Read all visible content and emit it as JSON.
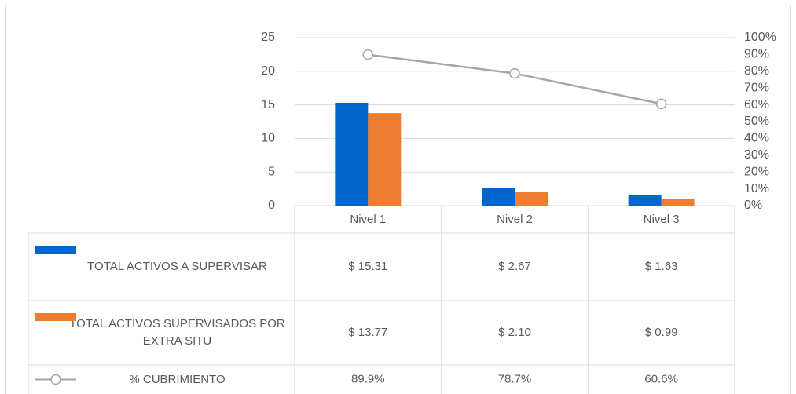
{
  "chart_data": {
    "type": "bar",
    "categories": [
      "Nivel 1",
      "Nivel 2",
      "Nivel 3"
    ],
    "series": [
      {
        "name": "TOTAL ACTIVOS A SUPERVISAR",
        "color": "#0066cc",
        "type": "bar",
        "values": [
          15.31,
          2.67,
          1.63
        ],
        "value_labels": [
          "$ 15.31",
          "$ 2.67",
          "$ 1.63"
        ]
      },
      {
        "name": "TOTAL ACTIVOS SUPERVISADOS POR EXTRA SITU",
        "color": "#ed7d31",
        "type": "bar",
        "values": [
          13.77,
          2.1,
          0.99
        ],
        "value_labels": [
          "$ 13.77",
          "$ 2.10",
          "$ 0.99"
        ]
      },
      {
        "name": "% CUBRIMIENTO",
        "color": "#a5a5a5",
        "type": "line",
        "axis": "y2",
        "values": [
          89.9,
          78.7,
          60.6
        ],
        "value_labels": [
          "89.9%",
          "78.7%",
          "60.6%"
        ]
      }
    ],
    "ylim": [
      0,
      25
    ],
    "yticks": [
      0,
      5,
      10,
      15,
      20,
      25
    ],
    "y2lim": [
      0,
      100
    ],
    "y2ticks": [
      {
        "value": 0,
        "label": "0%"
      },
      {
        "value": 10,
        "label": "10%"
      },
      {
        "value": 20,
        "label": "20%"
      },
      {
        "value": 30,
        "label": "30%"
      },
      {
        "value": 40,
        "label": "40%"
      },
      {
        "value": 50,
        "label": "50%"
      },
      {
        "value": 60,
        "label": "60%"
      },
      {
        "value": 70,
        "label": "70%"
      },
      {
        "value": 80,
        "label": "80%"
      },
      {
        "value": 90,
        "label": "90%"
      },
      {
        "value": 100,
        "label": "100%"
      }
    ],
    "grid": true,
    "data_table": true
  }
}
